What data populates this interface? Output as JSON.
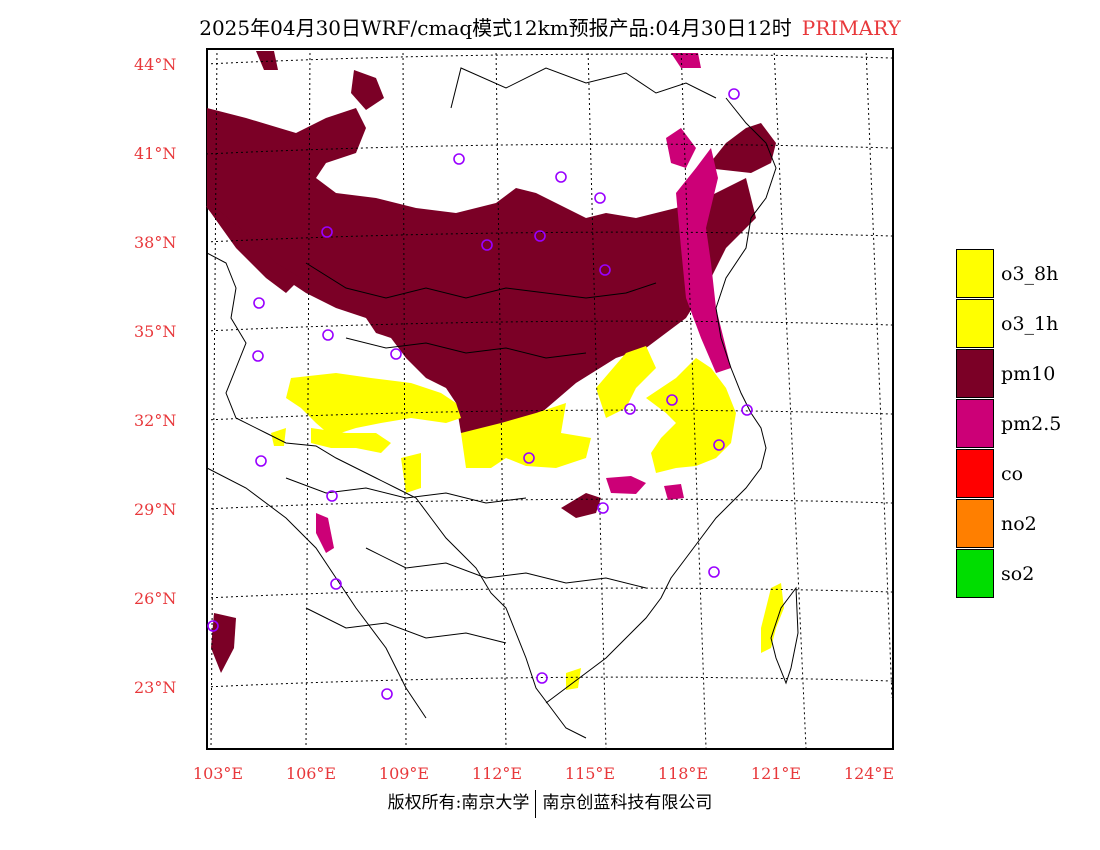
{
  "title": {
    "main": "2025年04月30日WRF/cmaq模式12km预报产品:04月30日12时",
    "tag": "PRIMARY"
  },
  "map": {
    "lat_labels": [
      "44°N",
      "41°N",
      "38°N",
      "35°N",
      "32°N",
      "29°N",
      "26°N",
      "23°N"
    ],
    "lon_labels": [
      "103°E",
      "106°E",
      "109°E",
      "112°E",
      "115°E",
      "118°E",
      "121°E",
      "124°E"
    ],
    "legend": [
      {
        "label": "o3_8h",
        "color": "#ffff00"
      },
      {
        "label": "o3_1h",
        "color": "#ffff00"
      },
      {
        "label": "pm10",
        "color": "#7b0026"
      },
      {
        "label": "pm2.5",
        "color": "#cc0077"
      },
      {
        "label": "co",
        "color": "#ff0000"
      },
      {
        "label": "no2",
        "color": "#ff7f00"
      },
      {
        "label": "so2",
        "color": "#00dd00"
      }
    ],
    "station_marker_color": "#9900ff"
  },
  "footer": {
    "left": "版权所有:南京大学",
    "right": "南京创蓝科技有限公司"
  }
}
